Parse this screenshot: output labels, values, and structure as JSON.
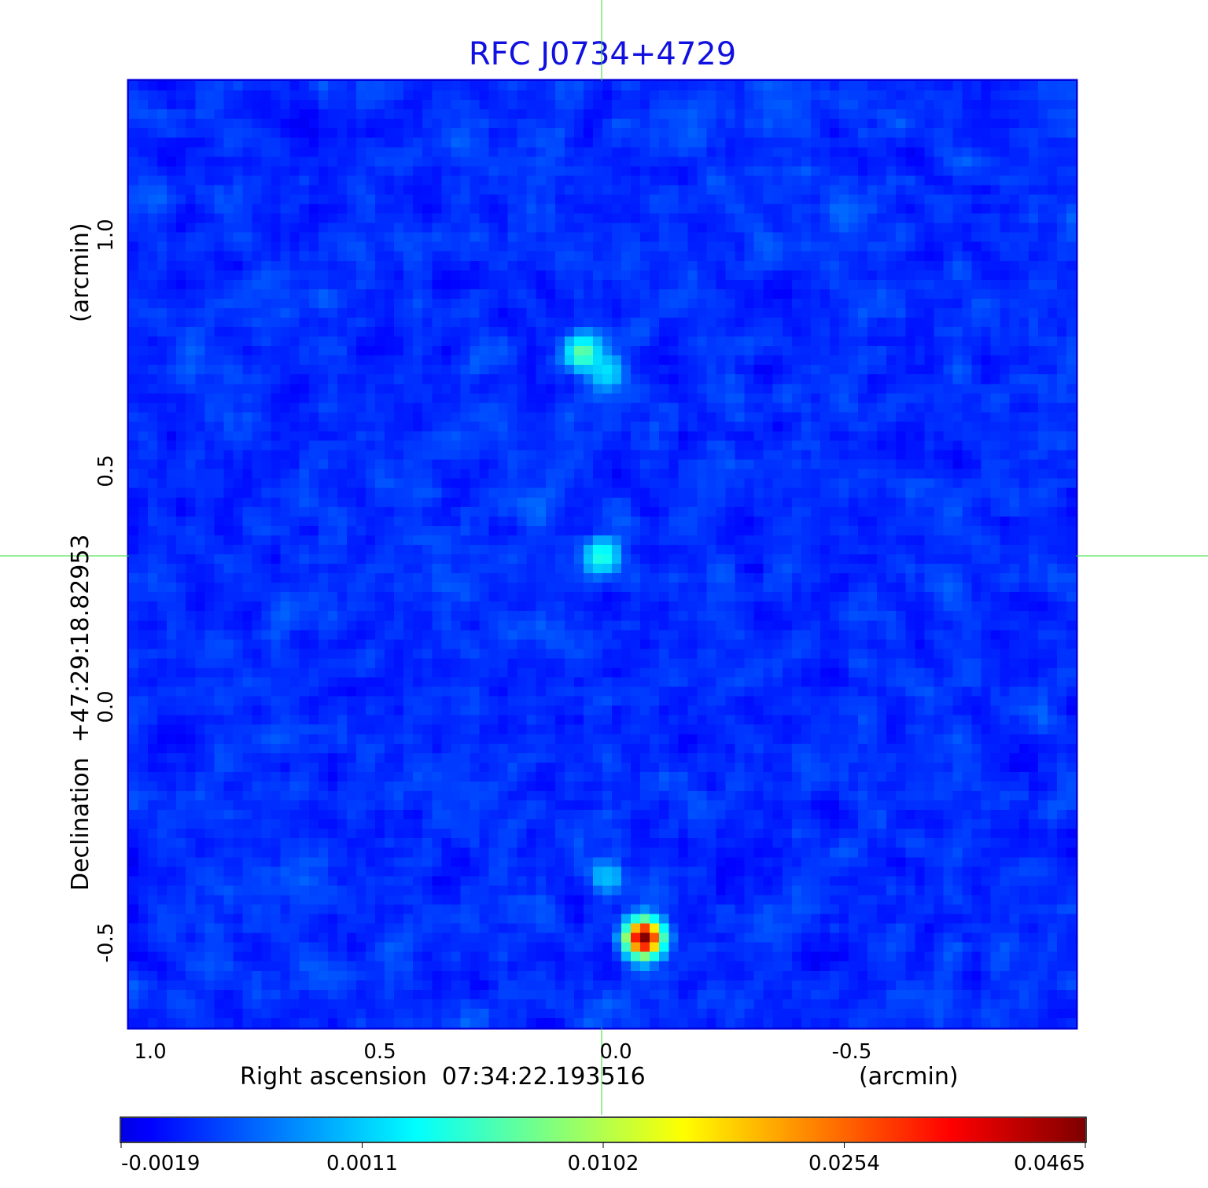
{
  "chart_data": {
    "type": "heatmap",
    "title": "RFC J0734+4729",
    "xlabel": "Right ascension  07:34:22.193516",
    "xunit": "(arcmin)",
    "ylabel": "Declination  +47:29:18.82953",
    "yunit": "(arcmin)",
    "xlim": [
      1.03,
      -0.98
    ],
    "ylim": [
      -0.66,
      1.33
    ],
    "xticks": [
      "1.0",
      "0.5",
      "0.0",
      "-0.5"
    ],
    "yticks": [
      "1.0",
      "0.5",
      "0.0",
      "-0.5"
    ],
    "grid": true,
    "crosshair": {
      "ra": 0.03,
      "dec": 0.32,
      "color": "#33dd33"
    },
    "colormap": "jet",
    "colorbar": {
      "placement": "bottom",
      "ticks": [
        "-0.0019",
        "0.0011",
        "0.0102",
        "0.0254",
        "0.0465"
      ],
      "tick_values": [
        -0.0019,
        0.0011,
        0.0102,
        0.0254,
        0.0465
      ]
    },
    "background_level": -0.0004,
    "sources": [
      {
        "ra": -0.06,
        "dec": -0.49,
        "peak": 0.0465
      },
      {
        "ra": 0.07,
        "dec": 0.75,
        "peak": 0.0095
      },
      {
        "ra": 0.02,
        "dec": 0.71,
        "peak": 0.004
      },
      {
        "ra": 0.03,
        "dec": 0.32,
        "peak": 0.0065
      },
      {
        "ra": 0.02,
        "dec": -0.36,
        "peak": 0.0025
      }
    ],
    "colors": {
      "title": "#1010e0",
      "frame": "#0000dd",
      "grid": "#000000"
    }
  }
}
